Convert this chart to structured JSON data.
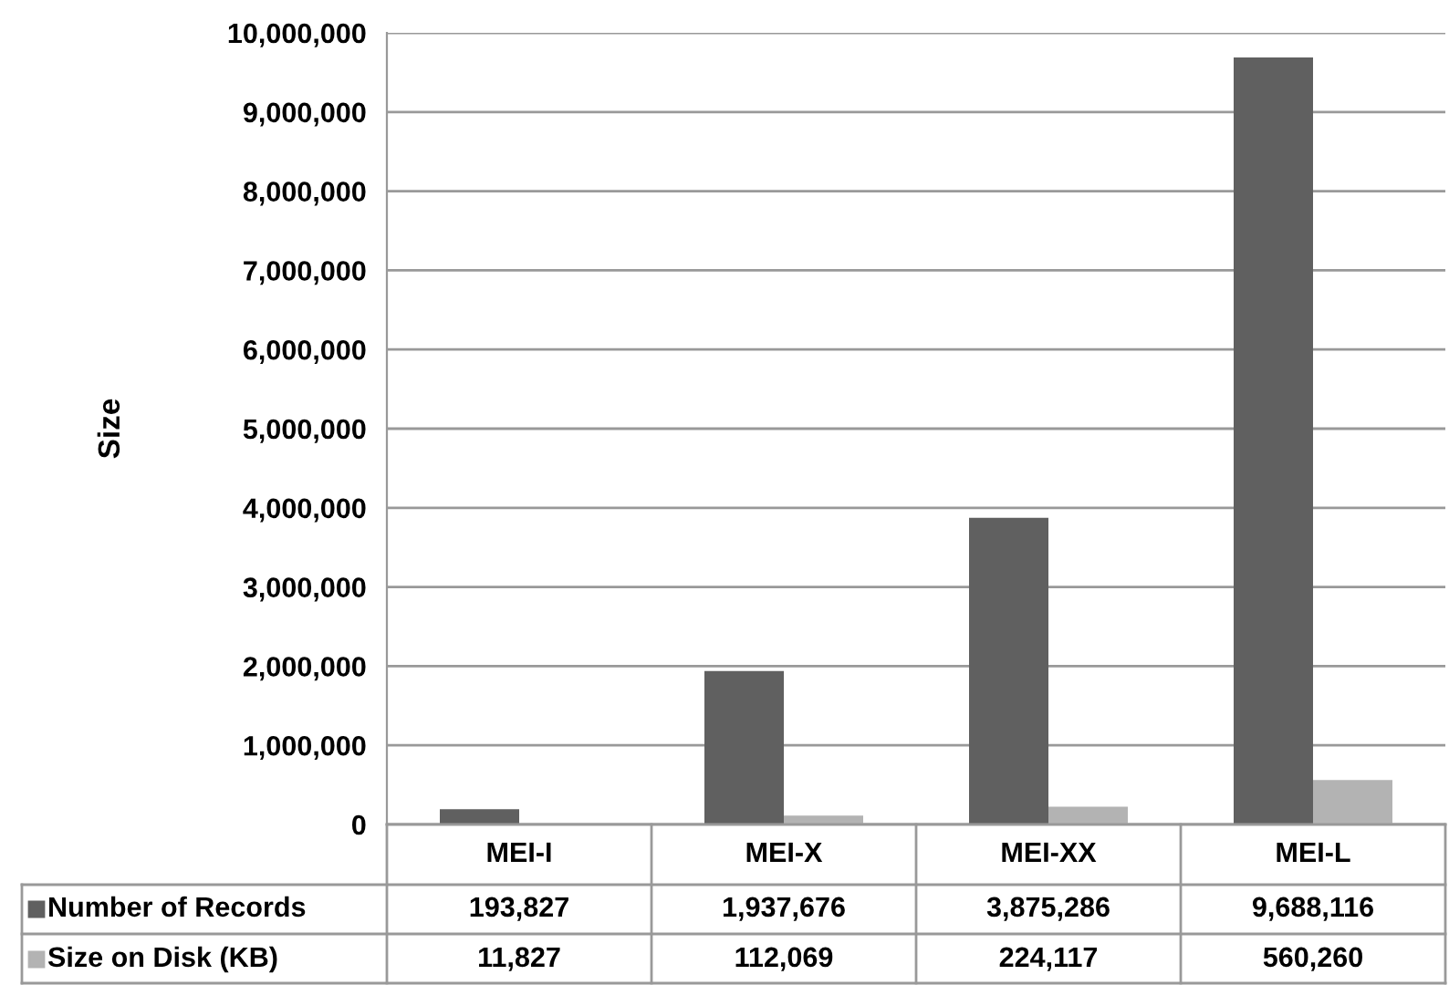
{
  "chart_data": {
    "type": "bar",
    "ylabel": "Size",
    "categories": [
      "MEI-I",
      "MEI-X",
      "MEI-XX",
      "MEI-L"
    ],
    "series": [
      {
        "name": "Number of Records",
        "color": "#606060",
        "values": [
          193827,
          1937676,
          3875286,
          9688116
        ],
        "value_labels": [
          "193,827",
          "1,937,676",
          "3,875,286",
          "9,688,116"
        ]
      },
      {
        "name": "Size on Disk (KB)",
        "color": "#b3b3b3",
        "values": [
          11827,
          112069,
          224117,
          560260
        ],
        "value_labels": [
          "11,827",
          "112,069",
          "224,117",
          "560,260"
        ]
      }
    ],
    "ylim": [
      0,
      10000000
    ],
    "yticks": [
      {
        "value": 0,
        "label": "0"
      },
      {
        "value": 1000000,
        "label": "1,000,000"
      },
      {
        "value": 2000000,
        "label": "2,000,000"
      },
      {
        "value": 3000000,
        "label": "3,000,000"
      },
      {
        "value": 4000000,
        "label": "4,000,000"
      },
      {
        "value": 5000000,
        "label": "5,000,000"
      },
      {
        "value": 6000000,
        "label": "6,000,000"
      },
      {
        "value": 7000000,
        "label": "7,000,000"
      },
      {
        "value": 8000000,
        "label": "8,000,000"
      },
      {
        "value": 9000000,
        "label": "9,000,000"
      },
      {
        "value": 10000000,
        "label": "10,000,000"
      }
    ],
    "grid": "y",
    "legend": "bottom left"
  }
}
